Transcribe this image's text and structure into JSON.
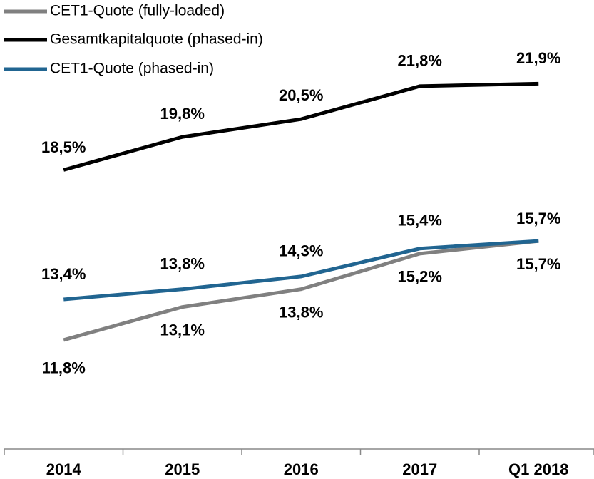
{
  "chart_data": {
    "type": "line",
    "categories": [
      "2014",
      "2015",
      "2016",
      "2017",
      "Q1 2018"
    ],
    "series": [
      {
        "name": "CET1-Quote (fully-loaded)",
        "color": "#808080",
        "values": [
          11.8,
          13.1,
          13.8,
          15.2,
          15.7
        ],
        "value_labels": [
          "11,8%",
          "13,1%",
          "13,8%",
          "15,2%",
          "15,7%"
        ]
      },
      {
        "name": "Gesamtkapitalquote (phased-in)",
        "color": "#000000",
        "values": [
          18.5,
          19.8,
          20.5,
          21.8,
          21.9
        ],
        "value_labels": [
          "18,5%",
          "19,8%",
          "20,5%",
          "21,8%",
          "21,9%"
        ]
      },
      {
        "name": "CET1-Quote  (phased-in)",
        "color": "#216591",
        "values": [
          13.4,
          13.8,
          14.3,
          15.4,
          15.7
        ],
        "value_labels": [
          "13,4%",
          "13,8%",
          "14,3%",
          "15,4%",
          "15,7%"
        ]
      }
    ],
    "ylim": [
      7.5,
      25
    ]
  }
}
